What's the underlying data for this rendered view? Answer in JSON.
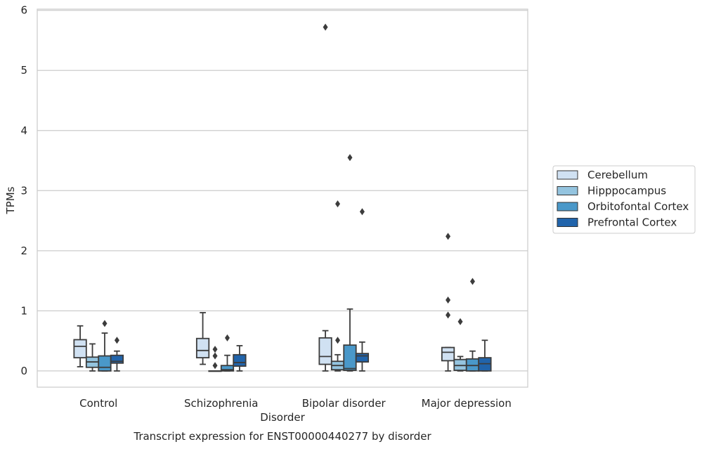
{
  "chart_data": {
    "type": "box",
    "title": "",
    "caption": "Transcript expression for ENST00000440277 by disorder",
    "xlabel": "Disorder",
    "ylabel": "TPMs",
    "ylim": [
      -0.27,
      6.02
    ],
    "yticks": [
      0,
      1,
      2,
      3,
      4,
      5,
      6
    ],
    "grid": "horizontal",
    "legend_position": "right",
    "categories": [
      "Control",
      "Schizophrenia",
      "Bipolar disorder",
      "Major depression"
    ],
    "series": [
      {
        "name": "Cerebellum",
        "color": "#d0e1f2",
        "boxes": [
          {
            "q1": 0.22,
            "median": 0.41,
            "q3": 0.52,
            "whisker_low": 0.07,
            "whisker_high": 0.75,
            "outliers": []
          },
          {
            "q1": 0.22,
            "median": 0.34,
            "q3": 0.54,
            "whisker_low": 0.11,
            "whisker_high": 0.97,
            "outliers": []
          },
          {
            "q1": 0.11,
            "median": 0.24,
            "q3": 0.55,
            "whisker_low": 0.0,
            "whisker_high": 0.67,
            "outliers": [
              5.72
            ]
          },
          {
            "q1": 0.17,
            "median": 0.31,
            "q3": 0.39,
            "whisker_low": 0.0,
            "whisker_high": 0.39,
            "outliers": [
              2.24,
              1.18,
              0.93
            ]
          }
        ]
      },
      {
        "name": "Hipppocampus",
        "color": "#94c4df",
        "boxes": [
          {
            "q1": 0.06,
            "median": 0.15,
            "q3": 0.23,
            "whisker_low": 0.0,
            "whisker_high": 0.45,
            "outliers": []
          },
          {
            "q1": 0.0,
            "median": 0.0,
            "q3": 0.0,
            "whisker_low": 0.0,
            "whisker_high": 0.0,
            "outliers": [
              0.36,
              0.25,
              0.09
            ]
          },
          {
            "q1": 0.02,
            "median": 0.09,
            "q3": 0.16,
            "whisker_low": 0.0,
            "whisker_high": 0.27,
            "outliers": [
              2.78,
              0.51
            ]
          },
          {
            "q1": 0.01,
            "median": 0.09,
            "q3": 0.19,
            "whisker_low": 0.0,
            "whisker_high": 0.24,
            "outliers": [
              0.82
            ]
          }
        ]
      },
      {
        "name": "Orbitofontal Cortex",
        "color": "#4a98c9",
        "boxes": [
          {
            "q1": 0.0,
            "median": 0.06,
            "q3": 0.25,
            "whisker_low": 0.0,
            "whisker_high": 0.63,
            "outliers": [
              0.79
            ]
          },
          {
            "q1": 0.0,
            "median": 0.02,
            "q3": 0.09,
            "whisker_low": 0.0,
            "whisker_high": 0.26,
            "outliers": [
              0.55
            ]
          },
          {
            "q1": 0.01,
            "median": 0.04,
            "q3": 0.43,
            "whisker_low": 0.0,
            "whisker_high": 1.03,
            "outliers": [
              3.55
            ]
          },
          {
            "q1": 0.0,
            "median": 0.09,
            "q3": 0.2,
            "whisker_low": 0.0,
            "whisker_high": 0.33,
            "outliers": [
              1.49
            ]
          }
        ]
      },
      {
        "name": "Prefrontal Cortex",
        "color": "#2164ab",
        "boxes": [
          {
            "q1": 0.13,
            "median": 0.16,
            "q3": 0.26,
            "whisker_low": 0.0,
            "whisker_high": 0.33,
            "outliers": [
              0.51
            ]
          },
          {
            "q1": 0.08,
            "median": 0.14,
            "q3": 0.27,
            "whisker_low": 0.0,
            "whisker_high": 0.42,
            "outliers": []
          },
          {
            "q1": 0.15,
            "median": 0.25,
            "q3": 0.29,
            "whisker_low": 0.0,
            "whisker_high": 0.48,
            "outliers": [
              2.65
            ]
          },
          {
            "q1": 0.0,
            "median": 0.12,
            "q3": 0.22,
            "whisker_low": 0.0,
            "whisker_high": 0.51,
            "outliers": []
          }
        ]
      }
    ]
  }
}
